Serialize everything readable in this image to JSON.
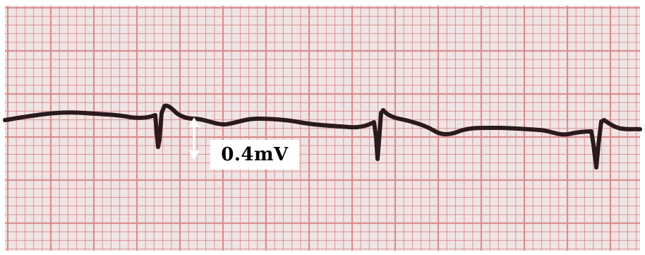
{
  "image": {
    "subject": "ecg-paper-strip",
    "grid_color": "#d98b8c",
    "paper_color": "#f2eaea",
    "trace_color": "#2a1a1c",
    "arrow_color": "#ffffff"
  },
  "annotation": {
    "label": "0.4mV"
  }
}
